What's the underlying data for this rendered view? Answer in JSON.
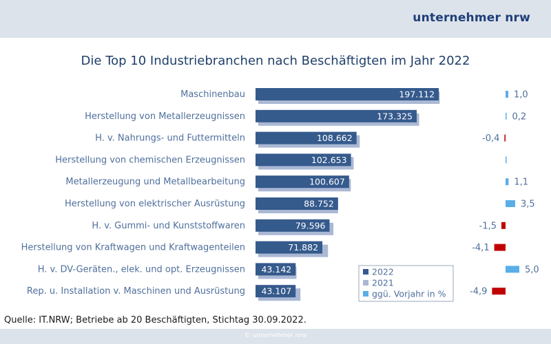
{
  "brand": "unternehmer nrw",
  "source_text": "Quelle: IT.NRW; Betriebe ab 20 Beschäftigten, Stichtag 30.09.2022.",
  "copyright": "© unternehmer nrw",
  "colors": {
    "bar_2022": "#355a8c",
    "bar_2021": "#aab8d4",
    "change_positive": "#5aaee8",
    "change_negative": "#c00000",
    "label_text": "#4f6f9c",
    "header_band": "#dde3ea"
  },
  "chart_data": {
    "type": "bar",
    "orientation": "horizontal",
    "title": "Die Top 10 Industriebranchen nach Beschäftigten im Jahr 2022",
    "categories": [
      "Maschinenbau",
      "Herstellung von Metallerzeugnissen",
      "H. v. Nahrungs- und Futtermitteln",
      "Herstellung von chemischen Erzeugnissen",
      "Metallerzeugung und Metallbearbeitung",
      "Herstellung von elektrischer Ausrüstung",
      "H. v. Gummi- und Kunststoffwaren",
      "Herstellung von  Kraftwagen und Kraftwagenteilen",
      "H. v. DV-Geräten., elek. und opt. Erzeugnissen",
      "Rep. u. Installation v. Maschinen und Ausrüstung"
    ],
    "series": [
      {
        "name": "2022",
        "values": [
          197112,
          173325,
          108662,
          102653,
          100607,
          88752,
          79596,
          71882,
          43142,
          43107
        ],
        "labels": [
          "197.112",
          "173.325",
          "108.662",
          "102.653",
          "100.607",
          "88.752",
          "79.596",
          "71.882",
          "43.142",
          "43.107"
        ]
      },
      {
        "name": "2021",
        "values": [
          195100,
          172980,
          109100,
          102600,
          99500,
          85750,
          80800,
          74950,
          41090,
          45330
        ]
      },
      {
        "name": "ggü. Vorjahr in %",
        "values": [
          1.0,
          0.2,
          -0.4,
          0.1,
          1.1,
          3.5,
          -1.5,
          -4.1,
          5.0,
          -4.9
        ],
        "labels": [
          "1,0",
          "0,2",
          "-0,4",
          "",
          "1,1",
          "3,5",
          "-1,5",
          "-4,1",
          "5,0",
          "-4,9"
        ]
      }
    ],
    "legend": [
      "2022",
      "2021",
      "ggü. Vorjahr in %"
    ],
    "legend_position": "bottom-right",
    "xlim": [
      0,
      200000
    ],
    "change_range": [
      -5,
      5
    ],
    "grid": false
  }
}
